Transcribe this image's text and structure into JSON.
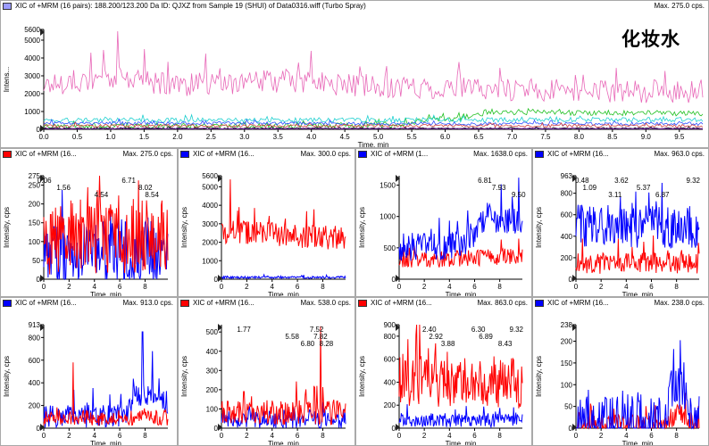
{
  "main": {
    "title": "XIC of +MRM (16 pairs): 188.200/123.200 Da ID: QJXZ from Sample 19 (SHUI) of Data0316.wiff (Turbo Spray)",
    "max_label": "Max. 275.0 cps.",
    "product_label": "化妆水",
    "legend_color": "#9b9bff"
  },
  "small_titles": [
    "XIC of +MRM (16...",
    "XIC of +MRM (16...",
    "XIC of +MRM (1...",
    "XIC of +MRM (16...",
    "XIC of +MRM (16...",
    "XIC of +MRM (16...",
    "XIC of +MRM (16...",
    "XIC of +MRM (16..."
  ],
  "chart_data": [
    {
      "id": "main",
      "type": "line",
      "xlabel": "Time, min",
      "ylabel": "Intens...",
      "xlim": [
        0.0,
        9.85
      ],
      "ylim": [
        0,
        5600
      ],
      "xticks": [
        "0.0",
        "0.5",
        "1.0",
        "1.5",
        "2.0",
        "2.5",
        "3.0",
        "3.5",
        "4.0",
        "4.5",
        "5.0",
        "5.5",
        "6.0",
        "6.5",
        "7.0",
        "7.5",
        "8.0",
        "8.5",
        "9.0",
        "9.5"
      ],
      "yticks": [
        "0",
        "1000",
        "2000",
        "3000",
        "4000",
        "5000",
        "5600"
      ],
      "series": [
        {
          "color": "#e868b8",
          "base": [
            [
              0,
              2500
            ],
            [
              1.0,
              2900
            ],
            [
              2,
              2500
            ],
            [
              3.5,
              2700
            ],
            [
              4.5,
              2500
            ],
            [
              6,
              2300
            ],
            [
              7.5,
              2200
            ],
            [
              9.8,
              2100
            ]
          ],
          "noise": 650,
          "spikes": [
            [
              1.1,
              5500
            ],
            [
              1.5,
              4500
            ],
            [
              4.0,
              4400
            ],
            [
              0.7,
              4300
            ]
          ]
        },
        {
          "color": "#20c020",
          "base": [
            [
              0,
              150
            ],
            [
              5.3,
              220
            ],
            [
              5.8,
              600
            ],
            [
              6.3,
              600
            ],
            [
              6.6,
              950
            ],
            [
              9.8,
              900
            ]
          ],
          "noise": 150
        },
        {
          "color": "#20d0d0",
          "base": [
            [
              0,
              500
            ],
            [
              9.8,
              550
            ]
          ],
          "noise": 130
        },
        {
          "color": "#3050ff",
          "base": [
            [
              0,
              350
            ],
            [
              9.8,
              300
            ]
          ],
          "noise": 90
        },
        {
          "color": "#d04040",
          "base": [
            [
              0,
              200
            ],
            [
              9.8,
              200
            ]
          ],
          "noise": 80
        },
        {
          "color": "#000000",
          "base": [
            [
              0,
              60
            ],
            [
              9.8,
              60
            ]
          ],
          "noise": 35
        },
        {
          "color": "#8020c0",
          "base": [
            [
              0,
              40
            ],
            [
              9.8,
              40
            ]
          ],
          "noise": 20
        }
      ],
      "max": "Max. 275.0 cps."
    },
    {
      "id": "p1",
      "type": "line",
      "max": "Max. 275.0 cps.",
      "swatch": "#ff0000",
      "xlabel": "Time, min",
      "ylabel": "Intensity, cps",
      "xlim": [
        0,
        9.8
      ],
      "ylim": [
        0,
        275
      ],
      "xticks": [
        "0",
        "2",
        "4",
        "6",
        "8"
      ],
      "yticks": [
        "0",
        "50",
        "100",
        "150",
        "200",
        "250",
        "275"
      ],
      "series": [
        {
          "color": "#0000ff",
          "base": [
            [
              0,
              70
            ],
            [
              9.8,
              70
            ]
          ],
          "noise": 85
        },
        {
          "color": "#ff0000",
          "base": [
            [
              0,
              110
            ],
            [
              9.8,
              120
            ]
          ],
          "noise": 100
        }
      ],
      "annotations": [
        {
          "x": 0.06,
          "label": "0.06"
        },
        {
          "x": 1.56,
          "label": "1.56"
        },
        {
          "x": 4.54,
          "label": "4.54"
        },
        {
          "x": 6.71,
          "label": "6.71"
        },
        {
          "x": 8.02,
          "label": "8.02"
        },
        {
          "x": 8.54,
          "label": "8.54"
        }
      ]
    },
    {
      "id": "p2",
      "type": "line",
      "max": "Max. 300.0 cps.",
      "swatch": "#0000ff",
      "xlabel": "Time, min",
      "ylabel": "Intensity, cps",
      "xlim": [
        0,
        9.8
      ],
      "ylim": [
        0,
        5600
      ],
      "xticks": [
        "0",
        "2",
        "4",
        "6",
        "8"
      ],
      "yticks": [
        "0",
        "1000",
        "2000",
        "3000",
        "4000",
        "5000",
        "5600"
      ],
      "series": [
        {
          "color": "#0000ff",
          "base": [
            [
              0,
              100
            ],
            [
              9.8,
              100
            ]
          ],
          "noise": 60
        },
        {
          "color": "#ff0000",
          "base": [
            [
              0,
              2600
            ],
            [
              9.8,
              2200
            ]
          ],
          "noise": 650,
          "spikes": [
            [
              0.7,
              5400
            ],
            [
              1.4,
              3900
            ]
          ]
        }
      ],
      "annotations": []
    },
    {
      "id": "p3",
      "type": "line",
      "max": "Max. 1638.0 cps.",
      "swatch": "#0000ff",
      "xlabel": "Time, min",
      "ylabel": "Intensity, cps",
      "xlim": [
        0,
        9.8
      ],
      "ylim": [
        0,
        1650
      ],
      "xticks": [
        "0",
        "2",
        "4",
        "6",
        "8"
      ],
      "yticks": [
        "0",
        "500",
        "1000",
        "1500"
      ],
      "series": [
        {
          "color": "#ff0000",
          "base": [
            [
              0,
              280
            ],
            [
              9.8,
              380
            ]
          ],
          "noise": 130
        },
        {
          "color": "#0000ff",
          "base": [
            [
              0,
              500
            ],
            [
              5,
              550
            ],
            [
              6,
              750
            ],
            [
              7,
              1000
            ],
            [
              9.8,
              900
            ]
          ],
          "noise": 230,
          "spikes": [
            [
              9.5,
              1620
            ]
          ]
        }
      ],
      "annotations": [
        {
          "x": 6.81,
          "label": "6.81"
        },
        {
          "x": 7.93,
          "label": "7.93"
        },
        {
          "x": 9.5,
          "label": "9.50"
        }
      ]
    },
    {
      "id": "p4",
      "type": "line",
      "max": "Max. 963.0 cps.",
      "swatch": "#0000ff",
      "xlabel": "Time, min",
      "ylabel": "Intensity, cps",
      "xlim": [
        0,
        9.8
      ],
      "ylim": [
        0,
        963
      ],
      "xticks": [
        "0",
        "2",
        "4",
        "6",
        "8"
      ],
      "yticks": [
        "0",
        "200",
        "400",
        "600",
        "800",
        "963"
      ],
      "series": [
        {
          "color": "#ff0000",
          "base": [
            [
              0,
              150
            ],
            [
              9.8,
              150
            ]
          ],
          "noise": 100
        },
        {
          "color": "#0000ff",
          "base": [
            [
              0,
              500
            ],
            [
              9.8,
              480
            ]
          ],
          "noise": 200
        }
      ],
      "annotations": [
        {
          "x": 0.48,
          "label": "0.48"
        },
        {
          "x": 1.09,
          "label": "1.09"
        },
        {
          "x": 3.11,
          "label": "3.11"
        },
        {
          "x": 3.62,
          "label": "3.62"
        },
        {
          "x": 5.37,
          "label": "5.37"
        },
        {
          "x": 6.87,
          "label": "6.87"
        },
        {
          "x": 9.32,
          "label": "9.32"
        }
      ]
    },
    {
      "id": "p5",
      "type": "line",
      "max": "Max. 913.0 cps.",
      "swatch": "#0000ff",
      "xlabel": "Time, min",
      "ylabel": "Intensity, cps",
      "xlim": [
        0,
        9.8
      ],
      "ylim": [
        0,
        913
      ],
      "xticks": [
        "0",
        "2",
        "4",
        "6",
        "8"
      ],
      "yticks": [
        "0",
        "200",
        "400",
        "600",
        "800",
        "913"
      ],
      "series": [
        {
          "color": "#0000ff",
          "base": [
            [
              0,
              100
            ],
            [
              6.5,
              110
            ],
            [
              7.2,
              300
            ],
            [
              9.8,
              230
            ]
          ],
          "noise": 100,
          "spikes": [
            [
              7.8,
              850
            ],
            [
              8.6,
              680
            ]
          ]
        },
        {
          "color": "#ff0000",
          "base": [
            [
              0,
              90
            ],
            [
              9.8,
              90
            ]
          ],
          "noise": 70,
          "spikes": [
            [
              2.3,
              580
            ]
          ]
        }
      ],
      "annotations": []
    },
    {
      "id": "p6",
      "type": "line",
      "max": "Max. 538.0 cps.",
      "swatch": "#ff0000",
      "xlabel": "Time, min",
      "ylabel": "Intensity, cps",
      "xlim": [
        0,
        9.8
      ],
      "ylim": [
        0,
        538
      ],
      "xticks": [
        "0",
        "2",
        "4",
        "6",
        "8"
      ],
      "yticks": [
        "0",
        "100",
        "200",
        "300",
        "400",
        "500"
      ],
      "series": [
        {
          "color": "#0000ff",
          "base": [
            [
              0,
              50
            ],
            [
              9.8,
              50
            ]
          ],
          "noise": 50
        },
        {
          "color": "#ff0000",
          "base": [
            [
              0,
              80
            ],
            [
              9.8,
              80
            ]
          ],
          "noise": 65,
          "spikes": [
            [
              7.82,
              530
            ],
            [
              7.52,
              220
            ],
            [
              1.77,
              190
            ]
          ]
        }
      ],
      "annotations": [
        {
          "x": 1.77,
          "label": "1.77"
        },
        {
          "x": 5.58,
          "label": "5.58"
        },
        {
          "x": 6.8,
          "label": "6.80"
        },
        {
          "x": 7.52,
          "label": "7.52"
        },
        {
          "x": 7.82,
          "label": "7.82"
        },
        {
          "x": 8.28,
          "label": "8.28"
        }
      ]
    },
    {
      "id": "p7",
      "type": "line",
      "max": "Max. 863.0 cps.",
      "swatch": "#ff0000",
      "xlabel": "Time, min",
      "ylabel": "Intensity, cps",
      "xlim": [
        0,
        9.8
      ],
      "ylim": [
        0,
        900
      ],
      "xticks": [
        "0",
        "2",
        "4",
        "6",
        "8"
      ],
      "yticks": [
        "0",
        "200",
        "400",
        "600",
        "800",
        "900"
      ],
      "series": [
        {
          "color": "#0000ff",
          "base": [
            [
              0,
              70
            ],
            [
              9.8,
              70
            ]
          ],
          "noise": 60
        },
        {
          "color": "#ff0000",
          "base": [
            [
              0,
              420
            ],
            [
              9.8,
              400
            ]
          ],
          "noise": 230
        }
      ],
      "annotations": [
        {
          "x": 2.4,
          "label": "2.40"
        },
        {
          "x": 2.92,
          "label": "2.92"
        },
        {
          "x": 3.88,
          "label": "3.88"
        },
        {
          "x": 6.3,
          "label": "6.30"
        },
        {
          "x": 6.89,
          "label": "6.89"
        },
        {
          "x": 8.43,
          "label": "8.43"
        },
        {
          "x": 9.32,
          "label": "9.32"
        }
      ]
    },
    {
      "id": "p8",
      "type": "line",
      "max": "Max. 238.0 cps.",
      "swatch": "#0000ff",
      "xlabel": "Time, min",
      "ylabel": "Intensity, cps",
      "xlim": [
        0,
        9.8
      ],
      "ylim": [
        0,
        238
      ],
      "xticks": [
        "0",
        "2",
        "4",
        "6",
        "8"
      ],
      "yticks": [
        "0",
        "50",
        "100",
        "150",
        "200",
        "238"
      ],
      "series": [
        {
          "color": "#ff0000",
          "base": [
            [
              0,
              5
            ],
            [
              7.3,
              10
            ],
            [
              8.0,
              40
            ],
            [
              9.0,
              20
            ],
            [
              9.8,
              5
            ]
          ],
          "noise": 25
        },
        {
          "color": "#0000ff",
          "base": [
            [
              0,
              5
            ],
            [
              7.3,
              20
            ],
            [
              7.8,
              120
            ],
            [
              8.5,
              90
            ],
            [
              9.2,
              30
            ],
            [
              9.8,
              10
            ]
          ],
          "noise": 70
        }
      ],
      "annotations": []
    }
  ]
}
